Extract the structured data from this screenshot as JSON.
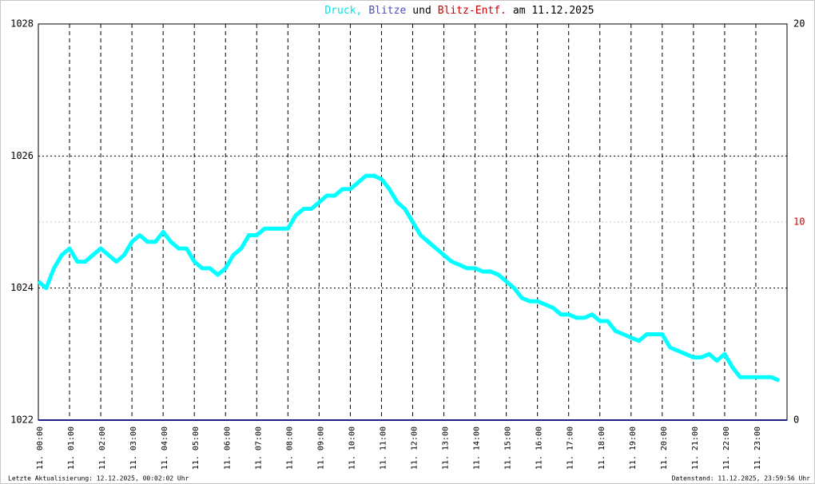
{
  "chart_data": {
    "type": "line",
    "title_parts": [
      {
        "text": "Druck,",
        "color": "#00e5e5"
      },
      {
        "text": "Blitze",
        "color": "#5050b0"
      },
      {
        "text": "und",
        "color": "#000000"
      },
      {
        "text": "Blitz-Entf.",
        "color": "#cc0000"
      },
      {
        "text": "am 11.12.2025",
        "color": "#000000"
      }
    ],
    "footer_left": "Letzte Aktualisierung: 12.12.2025, 00:02:02 Uhr",
    "footer_right": "Datenstand: 11.12.2025, 23:59:56 Uhr",
    "xlim": [
      0,
      24
    ],
    "xticks": [
      {
        "value": 0,
        "label": "11. 00:00"
      },
      {
        "value": 1,
        "label": "11. 01:00"
      },
      {
        "value": 2,
        "label": "11. 02:00"
      },
      {
        "value": 3,
        "label": "11. 03:00"
      },
      {
        "value": 4,
        "label": "11. 04:00"
      },
      {
        "value": 5,
        "label": "11. 05:00"
      },
      {
        "value": 6,
        "label": "11. 06:00"
      },
      {
        "value": 7,
        "label": "11. 07:00"
      },
      {
        "value": 8,
        "label": "11. 08:00"
      },
      {
        "value": 9,
        "label": "11. 09:00"
      },
      {
        "value": 10,
        "label": "11. 10:00"
      },
      {
        "value": 11,
        "label": "11. 11:00"
      },
      {
        "value": 12,
        "label": "11. 12:00"
      },
      {
        "value": 13,
        "label": "11. 13:00"
      },
      {
        "value": 14,
        "label": "11. 14:00"
      },
      {
        "value": 15,
        "label": "11. 15:00"
      },
      {
        "value": 16,
        "label": "11. 16:00"
      },
      {
        "value": 17,
        "label": "11. 17:00"
      },
      {
        "value": 18,
        "label": "11. 18:00"
      },
      {
        "value": 19,
        "label": "11. 19:00"
      },
      {
        "value": 20,
        "label": "11. 20:00"
      },
      {
        "value": 21,
        "label": "11. 21:00"
      },
      {
        "value": 22,
        "label": "11. 22:00"
      },
      {
        "value": 23,
        "label": "11. 23:00"
      }
    ],
    "ylim": [
      1022,
      1028
    ],
    "yticks": [
      1022,
      1024,
      1026,
      1028
    ],
    "y2lim": [
      0,
      20
    ],
    "y2ticks": [
      0,
      10,
      20
    ],
    "y2tick_colors": [
      "#000000",
      "#cc0000",
      "#000000"
    ],
    "grid": true,
    "series": [
      {
        "color": "#00ffff",
        "axis": "y",
        "x": [
          0,
          0.25,
          0.5,
          0.75,
          1,
          1.25,
          1.5,
          1.75,
          2,
          2.25,
          2.5,
          2.75,
          3,
          3.25,
          3.5,
          3.75,
          4,
          4.25,
          4.5,
          4.75,
          5,
          5.25,
          5.5,
          5.75,
          6,
          6.25,
          6.5,
          6.75,
          7,
          7.25,
          7.5,
          7.75,
          8,
          8.25,
          8.5,
          8.75,
          9,
          9.25,
          9.5,
          9.75,
          10,
          10.25,
          10.5,
          10.75,
          11,
          11.25,
          11.5,
          11.75,
          12,
          12.25,
          12.5,
          12.75,
          13,
          13.25,
          13.5,
          13.75,
          14,
          14.25,
          14.5,
          14.75,
          15,
          15.25,
          15.5,
          15.75,
          16,
          16.25,
          16.5,
          16.75,
          17,
          17.25,
          17.5,
          17.75,
          18,
          18.25,
          18.5,
          18.75,
          19,
          19.25,
          19.5,
          19.75,
          20,
          20.25,
          20.5,
          20.75,
          21,
          21.25,
          21.5,
          21.75,
          22,
          22.25,
          22.5,
          22.75,
          23,
          23.25,
          23.5,
          23.75
        ],
        "values": [
          1024.1,
          1024.0,
          1024.3,
          1024.5,
          1024.6,
          1024.4,
          1024.4,
          1024.5,
          1024.6,
          1024.5,
          1024.4,
          1024.5,
          1024.7,
          1024.8,
          1024.7,
          1024.7,
          1024.85,
          1024.7,
          1024.6,
          1024.6,
          1024.4,
          1024.3,
          1024.3,
          1024.2,
          1024.3,
          1024.5,
          1024.6,
          1024.8,
          1024.8,
          1024.9,
          1024.9,
          1024.9,
          1024.9,
          1025.1,
          1025.2,
          1025.2,
          1025.3,
          1025.4,
          1025.4,
          1025.5,
          1025.5,
          1025.6,
          1025.7,
          1025.7,
          1025.65,
          1025.5,
          1025.3,
          1025.2,
          1025.0,
          1024.8,
          1024.7,
          1024.6,
          1024.5,
          1024.4,
          1024.35,
          1024.3,
          1024.3,
          1024.25,
          1024.25,
          1024.2,
          1024.1,
          1024.0,
          1023.85,
          1023.8,
          1023.8,
          1023.75,
          1023.7,
          1023.6,
          1023.6,
          1023.55,
          1023.55,
          1023.6,
          1023.5,
          1023.5,
          1023.35,
          1023.3,
          1023.25,
          1023.2,
          1023.3,
          1023.3,
          1023.3,
          1023.1,
          1023.05,
          1023.0,
          1022.95,
          1022.95,
          1023.0,
          1022.9,
          1023.0,
          1022.8,
          1022.65,
          1022.65,
          1022.65,
          1022.65,
          1022.65,
          1022.6
        ]
      },
      {
        "color": "#202080",
        "axis": "y2",
        "x": [
          0,
          24
        ],
        "values": [
          0,
          0
        ]
      }
    ]
  }
}
